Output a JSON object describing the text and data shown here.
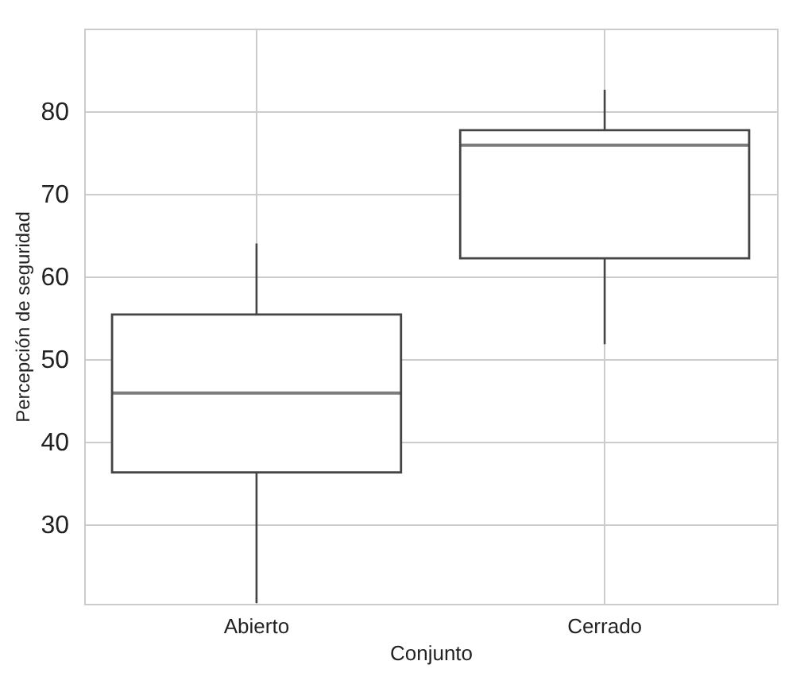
{
  "chart_data": {
    "type": "box",
    "xlabel": "Conjunto",
    "ylabel": "Percepción de seguridad",
    "categories": [
      "Abierto",
      "Cerrado"
    ],
    "boxes": [
      {
        "low": 20.5,
        "q1": 36.3,
        "median": 45.9,
        "q3": 55.4,
        "high": 64
      },
      {
        "low": 51.8,
        "q1": 62.2,
        "median": 75.9,
        "q3": 77.7,
        "high": 82.6
      }
    ],
    "ylim": [
      20.4,
      90
    ],
    "yticks": [
      30,
      40,
      50,
      60,
      70,
      80
    ],
    "grid": true
  }
}
